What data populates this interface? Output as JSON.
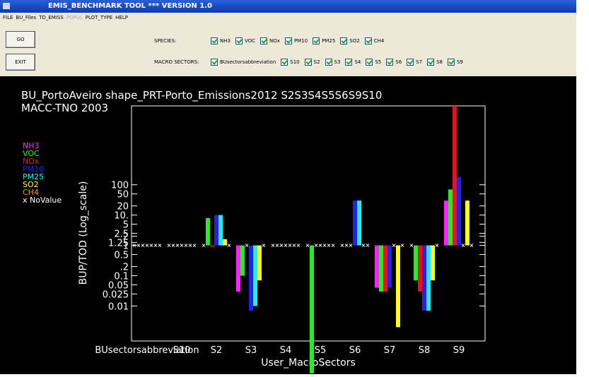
{
  "window": {
    "title": "EMIS_BENCHMARK TOOL *** VERSION 1.0"
  },
  "menu": [
    "FILE",
    "BU_Files",
    "TD_EMISS",
    "POPUL",
    "PLOT_TYPE",
    "HELP"
  ],
  "buttons": [
    "GO",
    "EXIT"
  ],
  "species": {
    "label": "SPECIES:",
    "options": [
      "NH3",
      "VOC",
      "NOx",
      "PM10",
      "PM25",
      "SO2",
      "CH4"
    ]
  },
  "macro_sectors": {
    "label": "MACRO SECTORS:",
    "options": [
      "BUsectorsabbreviation",
      "S10",
      "S2",
      "S3",
      "S4",
      "S5",
      "S6",
      "S7",
      "S8",
      "S9"
    ]
  },
  "chart_data": {
    "type": "bar",
    "title": "BU_PortoAveiro shape_PRT-Porto_Emissions2012 S2S3S4S5S6S9S10",
    "subtitle": "MACC-TNO 2003",
    "xlabel": "User_MacroSectors",
    "ylabel": "BUP/TOD  (Log_scale)",
    "log_scale": true,
    "nodata_label": "x NoValue",
    "categories": [
      "BUsectorsabbreviation",
      "S10",
      "S2",
      "S3",
      "S4",
      "S5",
      "S6",
      "S7",
      "S8",
      "S9"
    ],
    "ylim": [
      0.0007,
      40000
    ],
    "yticks": [
      0.01,
      0.025,
      0.05,
      0.1,
      {
        "value": 0.2,
        "label": ".2"
      },
      0.5,
      1,
      1.25,
      2,
      2.5,
      5,
      {
        "value": 10,
        "label": "10."
      },
      20,
      50,
      100
    ],
    "series": [
      {
        "name": "NH3",
        "color": "#ff22ff",
        "values": [
          null,
          null,
          null,
          0.03,
          null,
          null,
          null,
          0.04,
          null,
          30
        ]
      },
      {
        "name": "VOC",
        "color": "#22ee22",
        "values": [
          null,
          null,
          8,
          0.1,
          null,
          6e-05,
          null,
          0.03,
          0.07,
          70
        ]
      },
      {
        "name": "NOx",
        "color": "#ee1111",
        "values": [
          null,
          null,
          0.9,
          null,
          null,
          null,
          null,
          0.03,
          0.03,
          40000
        ]
      },
      {
        "name": "PM10",
        "color": "#2222ee",
        "values": [
          null,
          null,
          10,
          0.007,
          null,
          null,
          30,
          0.04,
          0.007,
          180
        ]
      },
      {
        "name": "PM25",
        "color": "#22eeee",
        "values": [
          null,
          null,
          10,
          0.01,
          null,
          null,
          30,
          null,
          0.007,
          null
        ]
      },
      {
        "name": "SO2",
        "color": "#ffff22",
        "values": [
          null,
          null,
          1.6,
          0.07,
          null,
          null,
          null,
          0.002,
          0.07,
          30
        ]
      },
      {
        "name": "CH4",
        "color": "#ff8c22",
        "values": [
          null,
          null,
          null,
          null,
          null,
          null,
          null,
          null,
          null,
          null
        ]
      }
    ]
  }
}
